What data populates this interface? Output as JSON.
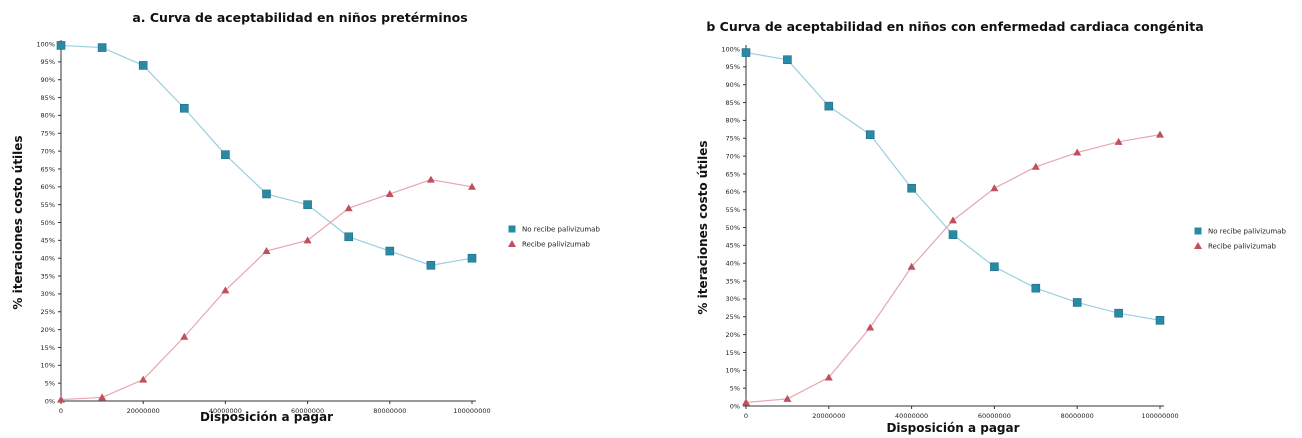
{
  "colors": {
    "no_recibe": "#2a8aa6",
    "recibe": "#c0505f",
    "line_no": "#9ad0de",
    "line_si": "#e7a6b0"
  },
  "chart_data": [
    {
      "type": "line",
      "title": "a. Curva de aceptabilidad en niños pretérminos",
      "xlabel": "Disposición a pagar",
      "ylabel": "% iteraciones costo útiles",
      "x": [
        0,
        10000000,
        20000000,
        30000000,
        40000000,
        50000000,
        60000000,
        70000000,
        80000000,
        90000000,
        100000000
      ],
      "xticks": [
        "0",
        "20000000",
        "40000000",
        "60000000",
        "80000000",
        "100000000"
      ],
      "yticks": [
        "0%",
        "5%",
        "10%",
        "15%",
        "20%",
        "25%",
        "30%",
        "35%",
        "40%",
        "45%",
        "50%",
        "55%",
        "60%",
        "65%",
        "70%",
        "75%",
        "80%",
        "85%",
        "90%",
        "95%",
        "100%"
      ],
      "ylim": [
        0,
        100
      ],
      "legend_position": "right",
      "series": [
        {
          "name": "No recibe palivizumab",
          "marker": "square",
          "values": [
            99.6,
            99,
            94,
            82,
            69,
            58,
            55,
            46,
            42,
            38,
            40
          ]
        },
        {
          "name": "Recibe palivizumab",
          "marker": "triangle",
          "values": [
            0.4,
            1,
            6,
            18,
            31,
            42,
            45,
            54,
            58,
            62,
            60
          ]
        }
      ]
    },
    {
      "type": "line",
      "title": "b Curva de aceptabilidad en niños con enfermedad cardiaca congénita",
      "xlabel": "Disposición a pagar",
      "ylabel": "% iteraciones costo útiles",
      "x": [
        0,
        10000000,
        20000000,
        30000000,
        40000000,
        50000000,
        60000000,
        70000000,
        80000000,
        90000000,
        100000000
      ],
      "xticks": [
        "0",
        "20000000",
        "40000000",
        "60000000",
        "80000000",
        "100000000"
      ],
      "yticks": [
        "0%",
        "5%",
        "10%",
        "15%",
        "20%",
        "25%",
        "30%",
        "35%",
        "40%",
        "45%",
        "50%",
        "55%",
        "60%",
        "65%",
        "70%",
        "75%",
        "80%",
        "85%",
        "90%",
        "95%",
        "100%"
      ],
      "ylim": [
        0,
        100
      ],
      "legend_position": "right",
      "series": [
        {
          "name": "No recibe palivizumab",
          "marker": "square",
          "values": [
            99,
            97,
            84,
            76,
            61,
            48,
            39,
            33,
            29,
            26,
            24
          ]
        },
        {
          "name": "Recibe palivizumab",
          "marker": "triangle",
          "values": [
            1,
            2,
            8,
            22,
            39,
            52,
            61,
            67,
            71,
            74,
            76
          ]
        }
      ]
    }
  ]
}
